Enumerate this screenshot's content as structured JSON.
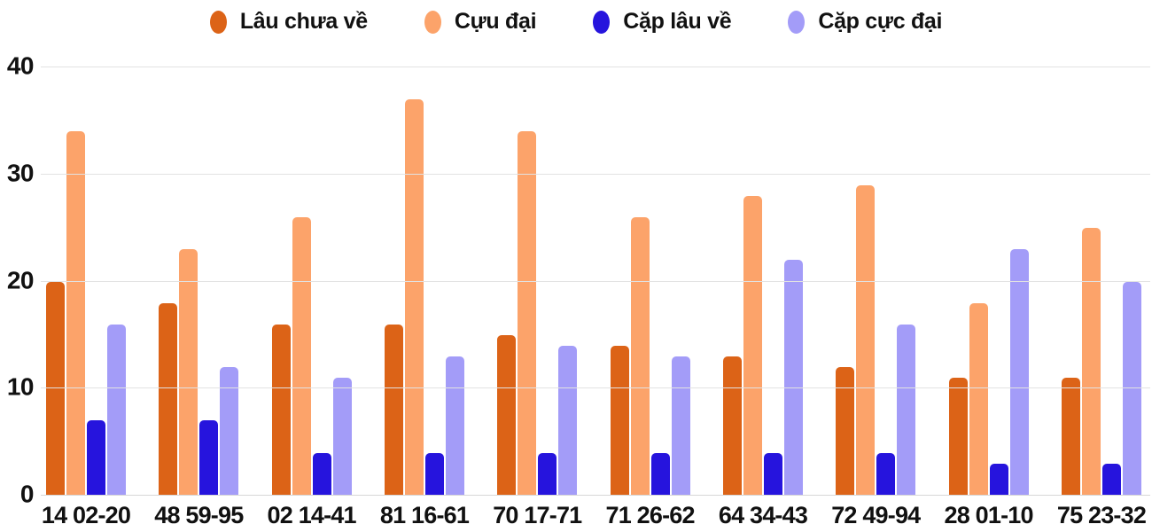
{
  "chart_data": {
    "type": "bar",
    "title": "",
    "categories": [
      "14 02-20",
      "48 59-95",
      "02 14-41",
      "81 16-61",
      "70 17-71",
      "71 26-62",
      "64 34-43",
      "72 49-94",
      "28 01-10",
      "75 23-32"
    ],
    "series": [
      {
        "name": "Lâu chưa về",
        "color": "#dc6317",
        "values": [
          20,
          18,
          16,
          16,
          15,
          14,
          13,
          12,
          11,
          11
        ]
      },
      {
        "name": "Cựu đại",
        "color": "#fca36a",
        "values": [
          34,
          23,
          26,
          37,
          34,
          26,
          28,
          29,
          18,
          25
        ]
      },
      {
        "name": "Cặp lâu về",
        "color": "#2614dd",
        "values": [
          7,
          7,
          4,
          4,
          4,
          4,
          4,
          4,
          3,
          3
        ]
      },
      {
        "name": "Cặp cực đại",
        "color": "#a39cf8",
        "values": [
          16,
          12,
          11,
          13,
          14,
          13,
          22,
          16,
          23,
          20
        ]
      }
    ],
    "xlabel": "",
    "ylabel": "",
    "ylim": [
      0,
      40
    ],
    "yticks": [
      0,
      10,
      20,
      30,
      40
    ],
    "grid": true,
    "legend_position": "top",
    "background_color": "#ffffff",
    "gridline_color": "#e2e2e2",
    "text_color": "#111111"
  }
}
